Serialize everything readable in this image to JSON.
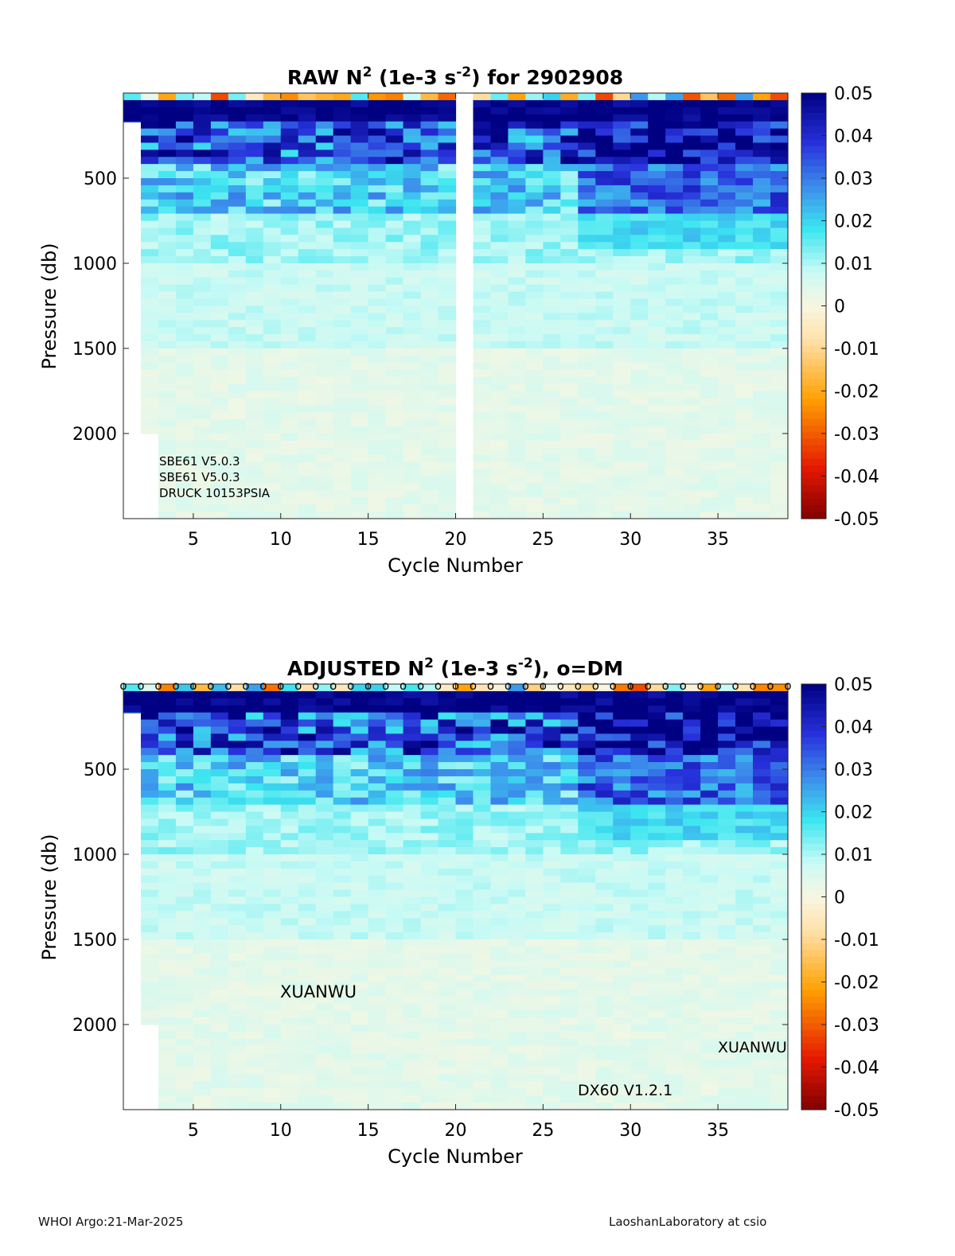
{
  "chart_data": [
    {
      "type": "heatmap",
      "title": "RAW N² (1e-3 s⁻²) for 2902908",
      "title_parts": {
        "prefix": "RAW N",
        "sup1": "2",
        "mid": " (1e-3 s",
        "sup2": "-2",
        "suffix": ") for 2902908"
      },
      "xlabel": "Cycle Number",
      "ylabel": "Pressure (db)",
      "xlim": [
        1,
        39
      ],
      "ylim": [
        2500,
        0
      ],
      "xticks": [
        5,
        10,
        15,
        20,
        25,
        30,
        35
      ],
      "yticks": [
        500,
        1000,
        1500,
        2000
      ],
      "missing_cycles": [
        20
      ],
      "colorbar": {
        "min": -0.05,
        "max": 0.05,
        "ticks": [
          "0.05",
          "0.04",
          "0.03",
          "0.02",
          "0.01",
          "0",
          "-0.01",
          "-0.02",
          "-0.03",
          "-0.04",
          "-0.05"
        ]
      },
      "annotations": [
        "SBE61 V5.0.3",
        "SBE61 V5.0.3",
        "DRUCK 10153PSIA"
      ],
      "dm_markers": false
    },
    {
      "type": "heatmap",
      "title": "ADJUSTED N² (1e-3 s⁻²), o=DM",
      "title_parts": {
        "prefix": "ADJUSTED N",
        "sup1": "2",
        "mid": " (1e-3 s",
        "sup2": "-2",
        "suffix": "), o=DM"
      },
      "xlabel": "Cycle Number",
      "ylabel": "Pressure (db)",
      "xlim": [
        1,
        39
      ],
      "ylim": [
        2500,
        0
      ],
      "xticks": [
        5,
        10,
        15,
        20,
        25,
        30,
        35
      ],
      "yticks": [
        500,
        1000,
        1500,
        2000
      ],
      "missing_cycles": [],
      "colorbar": {
        "min": -0.05,
        "max": 0.05,
        "ticks": [
          "0.05",
          "0.04",
          "0.03",
          "0.02",
          "0.01",
          "0",
          "-0.01",
          "-0.02",
          "-0.03",
          "-0.04",
          "-0.05"
        ]
      },
      "annotations": [
        "XUANWU",
        "XUANWU",
        "DX60 V1.2.1"
      ],
      "dm_markers": true,
      "dm_marker_label": "o"
    }
  ],
  "footer": {
    "left": "WHOI Argo:21-Mar-2025",
    "right": "LaoshanLaboratory at csio"
  }
}
